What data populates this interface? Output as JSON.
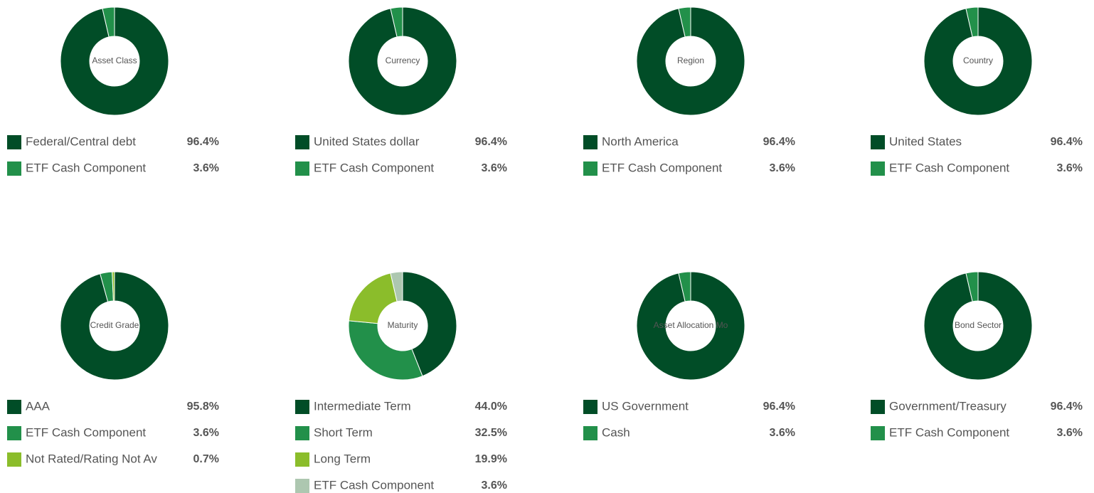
{
  "chart_data": [
    {
      "type": "pie",
      "title": "Asset Class",
      "categories": [
        "Federal/Central debt",
        "ETF Cash Component"
      ],
      "values": [
        96.4,
        3.6
      ],
      "value_labels": [
        "96.4%",
        "3.6%"
      ],
      "colors": [
        "#014d27",
        "#22904a"
      ]
    },
    {
      "type": "pie",
      "title": "Currency",
      "categories": [
        "United States dollar",
        "ETF Cash Component"
      ],
      "values": [
        96.4,
        3.6
      ],
      "value_labels": [
        "96.4%",
        "3.6%"
      ],
      "colors": [
        "#014d27",
        "#22904a"
      ]
    },
    {
      "type": "pie",
      "title": "Region",
      "categories": [
        "North America",
        "ETF Cash Component"
      ],
      "values": [
        96.4,
        3.6
      ],
      "value_labels": [
        "96.4%",
        "3.6%"
      ],
      "colors": [
        "#014d27",
        "#22904a"
      ]
    },
    {
      "type": "pie",
      "title": "Country",
      "categories": [
        "United States",
        "ETF Cash Component"
      ],
      "values": [
        96.4,
        3.6
      ],
      "value_labels": [
        "96.4%",
        "3.6%"
      ],
      "colors": [
        "#014d27",
        "#22904a"
      ]
    },
    {
      "type": "pie",
      "title": "Credit Grade",
      "categories": [
        "AAA",
        "ETF Cash Component",
        "Not Rated/Rating Not Av"
      ],
      "values": [
        95.8,
        3.6,
        0.7
      ],
      "value_labels": [
        "95.8%",
        "3.6%",
        "0.7%"
      ],
      "colors": [
        "#014d27",
        "#22904a",
        "#8bbd2b"
      ]
    },
    {
      "type": "pie",
      "title": "Maturity",
      "categories": [
        "Intermediate Term",
        "Short Term",
        "Long Term",
        "ETF Cash Component"
      ],
      "values": [
        44.0,
        32.5,
        19.9,
        3.6
      ],
      "value_labels": [
        "44.0%",
        "32.5%",
        "19.9%",
        "3.6%"
      ],
      "colors": [
        "#014d27",
        "#22904a",
        "#8bbd2b",
        "#adc7b0"
      ]
    },
    {
      "type": "pie",
      "title": "Asset Allocation Mo",
      "categories": [
        "US Government",
        "Cash"
      ],
      "values": [
        96.4,
        3.6
      ],
      "value_labels": [
        "96.4%",
        "3.6%"
      ],
      "colors": [
        "#014d27",
        "#22904a"
      ]
    },
    {
      "type": "pie",
      "title": "Bond Sector",
      "categories": [
        "Government/Treasury",
        "ETF Cash Component"
      ],
      "values": [
        96.4,
        3.6
      ],
      "value_labels": [
        "96.4%",
        "3.6%"
      ],
      "colors": [
        "#014d27",
        "#22904a"
      ]
    }
  ]
}
